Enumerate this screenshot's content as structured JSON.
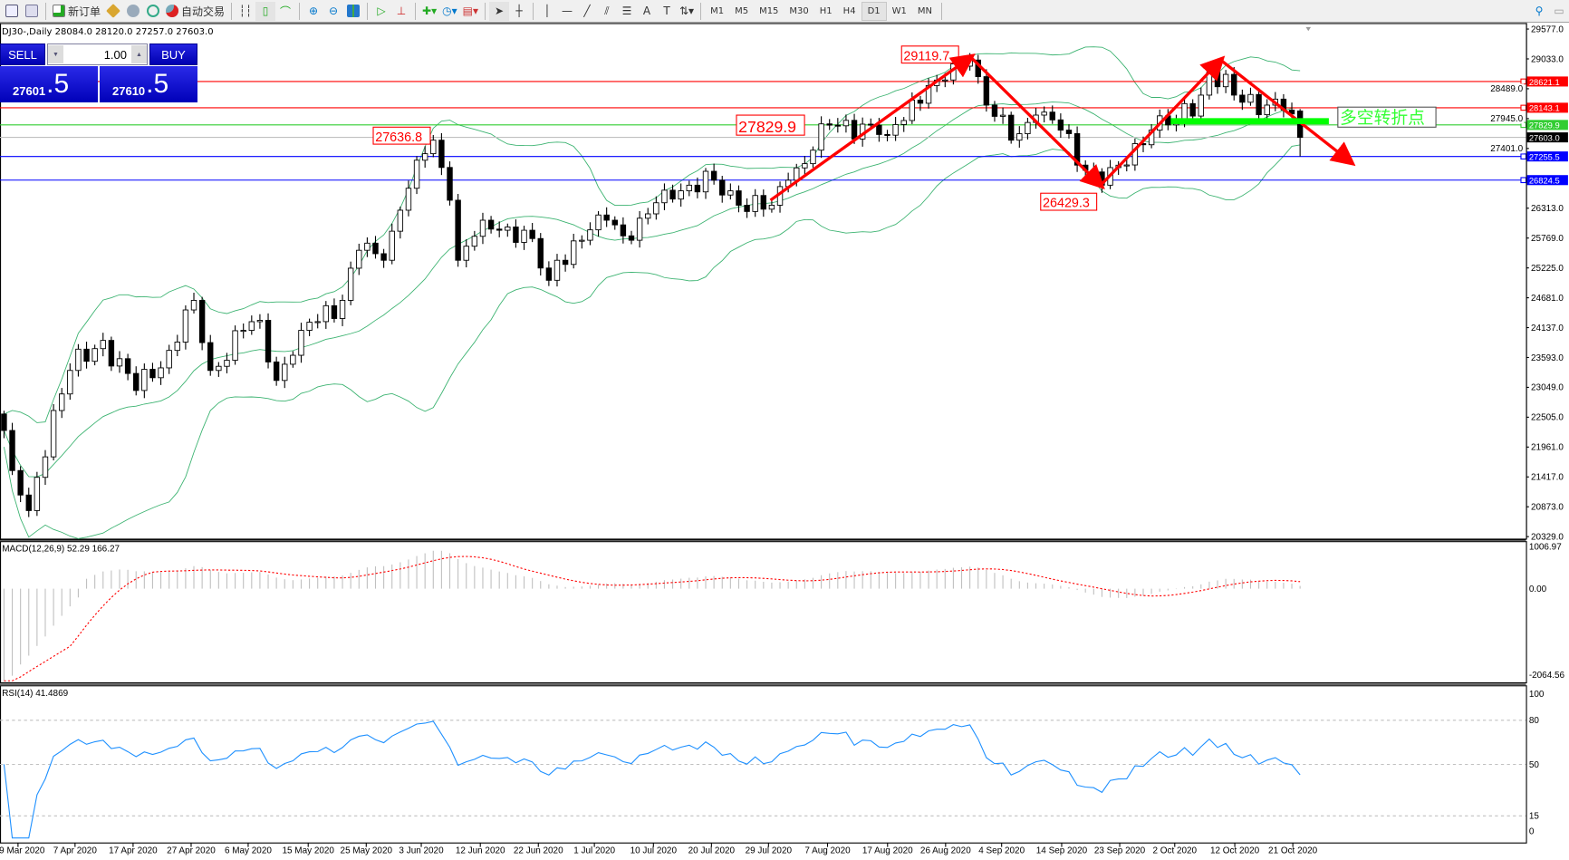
{
  "toolbar": {
    "new_order": "新订单",
    "auto_trading": "自动交易",
    "timeframes": [
      "M1",
      "M5",
      "M15",
      "M30",
      "H1",
      "H4",
      "D1",
      "W1",
      "MN"
    ],
    "active_timeframe": "D1"
  },
  "chart_header": "DJ30-,Daily  28084.0 28120.0 27257.0 27603.0",
  "trade_panel": {
    "sell": "SELL",
    "buy": "BUY",
    "lot": "1.00",
    "bid_main": "27601",
    "bid_big": ".5",
    "ask_main": "27610",
    "ask_big": ".5"
  },
  "chart_data": {
    "type": "candlestick",
    "symbol": "DJ30-",
    "timeframe": "Daily",
    "ohlc_last": {
      "open": 28084.0,
      "high": 28120.0,
      "low": 27257.0,
      "close": 27603.0
    },
    "price_ticks": [
      "29577.0",
      "29033.0",
      "28489.0",
      "27945.0",
      "27401.0",
      "26313.0",
      "25769.0",
      "25225.0",
      "24681.0",
      "24137.0",
      "23593.0",
      "23049.0",
      "22505.0",
      "21961.0",
      "21417.0",
      "20873.0",
      "20329.0"
    ],
    "ylim": [
      20329.0,
      29577.0
    ],
    "date_ticks": [
      "9 Mar 2020",
      "7 Apr 2020",
      "17 Apr 2020",
      "27 Apr 2020",
      "6 May 2020",
      "15 May 2020",
      "25 May 2020",
      "3 Jun 2020",
      "12 Jun 2020",
      "22 Jun 2020",
      "1 Jul 2020",
      "10 Jul 2020",
      "20 Jul 2020",
      "29 Jul 2020",
      "7 Aug 2020",
      "17 Aug 2020",
      "26 Aug 2020",
      "4 Sep 2020",
      "14 Sep 2020",
      "23 Sep 2020",
      "2 Oct 2020",
      "12 Oct 2020",
      "21 Oct 2020"
    ],
    "approx_closes_by_bar": [
      [
        0,
        22263
      ],
      [
        1,
        21533
      ],
      [
        3,
        20804
      ],
      [
        6,
        22627
      ],
      [
        8,
        23357
      ],
      [
        12,
        23904
      ],
      [
        16,
        22992
      ],
      [
        20,
        23722
      ],
      [
        23,
        24634
      ],
      [
        25,
        23357
      ],
      [
        29,
        24087
      ],
      [
        31,
        24270
      ],
      [
        33,
        23175
      ],
      [
        36,
        24087
      ],
      [
        41,
        24634
      ],
      [
        43,
        25546
      ],
      [
        46,
        25364
      ],
      [
        48,
        26276
      ],
      [
        50,
        27187
      ],
      [
        52,
        27552
      ],
      [
        54,
        26458
      ],
      [
        55,
        25364
      ],
      [
        58,
        26094
      ],
      [
        60,
        25911
      ],
      [
        63,
        25911
      ],
      [
        66,
        24999
      ],
      [
        67,
        25364
      ],
      [
        70,
        25729
      ],
      [
        73,
        26094
      ],
      [
        76,
        25729
      ],
      [
        80,
        26641
      ],
      [
        83,
        26732
      ],
      [
        86,
        26823
      ],
      [
        89,
        26367
      ],
      [
        93,
        26367
      ],
      [
        95,
        26823
      ],
      [
        98,
        27370
      ],
      [
        100,
        27826
      ],
      [
        105,
        27826
      ],
      [
        107,
        27643
      ],
      [
        110,
        28282
      ],
      [
        113,
        28647
      ],
      [
        117,
        29012
      ],
      [
        119,
        28191
      ],
      [
        122,
        27552
      ],
      [
        125,
        28009
      ],
      [
        128,
        27735
      ],
      [
        131,
        27005
      ],
      [
        133,
        26732
      ],
      [
        135,
        27096
      ],
      [
        139,
        27735
      ],
      [
        142,
        27917
      ],
      [
        145,
        28373
      ],
      [
        146,
        28793
      ],
      [
        149,
        28373
      ],
      [
        153,
        28191
      ],
      [
        155,
        28100
      ],
      [
        157,
        27603
      ]
    ],
    "bollinger": {
      "period": 20,
      "deviation": 2,
      "color": "#3cb371"
    },
    "horizontal_lines": [
      {
        "price": 28621.1,
        "label": "28621.1",
        "color": "#ff0000"
      },
      {
        "price": 28143.1,
        "label": "28143.1",
        "color": "#ff0000"
      },
      {
        "price": 27829.9,
        "label": "27829.9",
        "color": "#32cd32"
      },
      {
        "price": 27603.0,
        "label": "27603.0",
        "color": "#c0c0c0",
        "tag": "#000000"
      },
      {
        "price": 27255.5,
        "label": "27255.5",
        "color": "#0000ff"
      },
      {
        "price": 26824.5,
        "label": "26824.5",
        "color": "#0000ff"
      }
    ],
    "annotations": [
      {
        "text": "29119.7",
        "price": 29119.7
      },
      {
        "text": "27829.9",
        "price": 27829.9
      },
      {
        "text": "27636.8",
        "price": 27636.8
      },
      {
        "text": "26429.3",
        "price": 26429.3
      }
    ],
    "pivot_label": "多空转折点",
    "macd": {
      "label": "MACD(12,26,9) 52.29 166.27",
      "ticks": [
        "1006.97",
        "0.00",
        "-2064.56"
      ],
      "ylim": [
        -2064.56,
        1006.97
      ],
      "signal_color": "#ff0000",
      "hist_color": "#c0c0c0"
    },
    "rsi": {
      "label": "RSI(14) 41.4869",
      "ticks": [
        "100",
        "80",
        "50",
        "15",
        "0"
      ],
      "levels": [
        80,
        50,
        15
      ],
      "color": "#1e90ff"
    }
  }
}
